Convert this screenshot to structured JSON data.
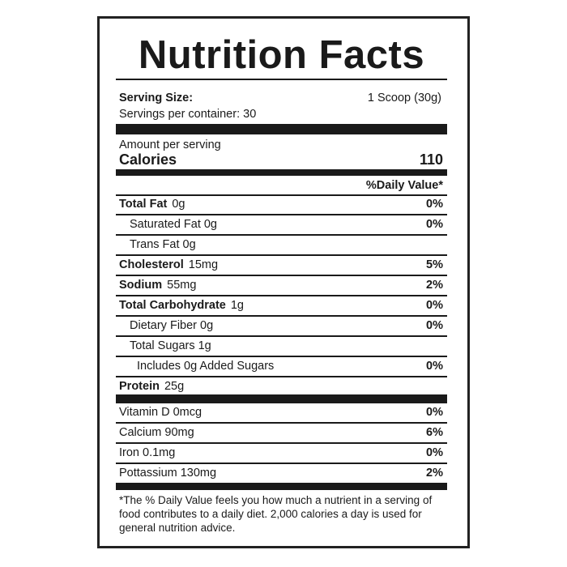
{
  "title": "Nutrition Facts",
  "serving": {
    "label": "Serving Size:",
    "value": "1 Scoop (30g)",
    "per_container": "Servings per container: 30"
  },
  "calories": {
    "amount_label": "Amount per serving",
    "label": "Calories",
    "value": "110"
  },
  "dv_header": "%Daily Value*",
  "nutrients": [
    {
      "name": "Total Fat",
      "amount": "0g",
      "dv": "0%"
    },
    {
      "name": "Saturated Fat",
      "amount": "0g",
      "dv": "0%"
    },
    {
      "name": "Trans Fat",
      "amount": "0g"
    },
    {
      "name": "Cholesterol",
      "amount": "15mg",
      "dv": "5%"
    },
    {
      "name": "Sodium",
      "amount": "55mg",
      "dv": "2%"
    },
    {
      "name": "Total Carbohydrate",
      "amount": "1g",
      "dv": "0%"
    },
    {
      "name": "Dietary Fiber",
      "amount": "0g",
      "dv": "0%"
    },
    {
      "name": "Total Sugars",
      "amount": "1g"
    },
    {
      "name": "Includes 0g Added Sugars",
      "dv": "0%"
    },
    {
      "name": "Protein",
      "amount": "25g"
    }
  ],
  "vitamins": [
    {
      "name": "Vitamin D",
      "amount": "0mcg",
      "dv": "0%"
    },
    {
      "name": "Calcium",
      "amount": "90mg",
      "dv": "6%"
    },
    {
      "name": "Iron",
      "amount": "0.1mg",
      "dv": "0%"
    },
    {
      "name": "Pottassium",
      "amount": "130mg",
      "dv": "2%"
    }
  ],
  "footnote": "*The % Daily Value feels you how much a nutrient in a serving of food contributes to a daily diet. 2,000 calories a day is used for general nutrition advice."
}
